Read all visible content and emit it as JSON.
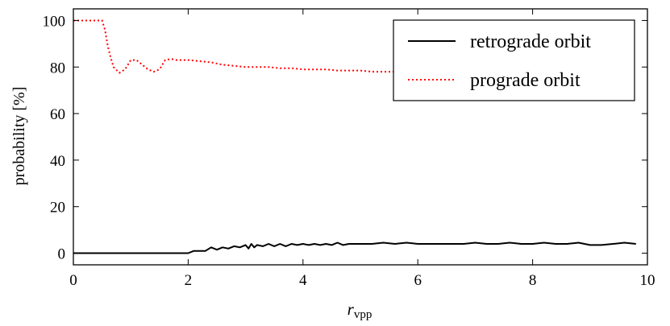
{
  "chart_data": {
    "type": "line",
    "title": "",
    "xlabel_main": "r",
    "xlabel_sub": "vpp",
    "ylabel": "probability [%]",
    "xlim": [
      0,
      10
    ],
    "ylim": [
      -5,
      105
    ],
    "xticks": [
      0,
      2,
      4,
      6,
      8,
      10
    ],
    "yticks": [
      0,
      20,
      40,
      60,
      80,
      100
    ],
    "grid": false,
    "legend_position": "top-right",
    "series": [
      {
        "name": "retrograde orbit",
        "color": "#000000",
        "style": "solid",
        "x": [
          0,
          0.5,
          1.0,
          1.5,
          2.0,
          2.1,
          2.3,
          2.4,
          2.5,
          2.6,
          2.7,
          2.8,
          2.9,
          3.0,
          3.05,
          3.1,
          3.15,
          3.2,
          3.3,
          3.4,
          3.5,
          3.6,
          3.7,
          3.8,
          3.9,
          4.0,
          4.1,
          4.2,
          4.3,
          4.4,
          4.5,
          4.6,
          4.7,
          4.8,
          4.9,
          5.0,
          5.2,
          5.4,
          5.6,
          5.8,
          6.0,
          6.2,
          6.4,
          6.6,
          6.8,
          7.0,
          7.2,
          7.4,
          7.6,
          7.8,
          8.0,
          8.2,
          8.4,
          8.6,
          8.8,
          9.0,
          9.2,
          9.4,
          9.6,
          9.8
        ],
        "y": [
          0,
          0,
          0,
          0,
          0,
          1,
          1,
          2.5,
          1.5,
          2.5,
          2,
          3,
          2.5,
          3.5,
          2,
          4,
          2.5,
          3.5,
          3,
          4,
          3,
          4,
          3,
          4,
          3.5,
          4,
          3.5,
          4,
          3.5,
          4,
          3.5,
          4.5,
          3.5,
          4,
          4,
          4,
          4,
          4.5,
          4,
          4.5,
          4,
          4,
          4,
          4,
          4,
          4.5,
          4,
          4,
          4.5,
          4,
          4,
          4.5,
          4,
          4,
          4.5,
          3.5,
          3.5,
          4,
          4.5,
          4
        ]
      },
      {
        "name": "prograde orbit",
        "color": "#ff0000",
        "style": "dotted",
        "x": [
          0,
          0.5,
          0.55,
          0.6,
          0.65,
          0.7,
          0.8,
          0.9,
          1.0,
          1.1,
          1.2,
          1.3,
          1.4,
          1.5,
          1.6,
          1.7,
          1.8,
          2.0,
          2.2,
          2.4,
          2.6,
          2.8,
          3.0,
          3.2,
          3.4,
          3.6,
          3.8,
          4.0,
          4.2,
          4.4,
          4.6,
          4.8,
          5.0,
          5.2,
          5.4,
          5.6,
          5.7
        ],
        "y": [
          100,
          100,
          96,
          89,
          84,
          80,
          77.5,
          79,
          83,
          83,
          81,
          79,
          78,
          79,
          83,
          83.5,
          83,
          83,
          82.5,
          82,
          81,
          80.5,
          80,
          80,
          80,
          79.5,
          79.5,
          79,
          79,
          79,
          78.5,
          78.5,
          78.5,
          78,
          78,
          78,
          78
        ]
      }
    ]
  }
}
